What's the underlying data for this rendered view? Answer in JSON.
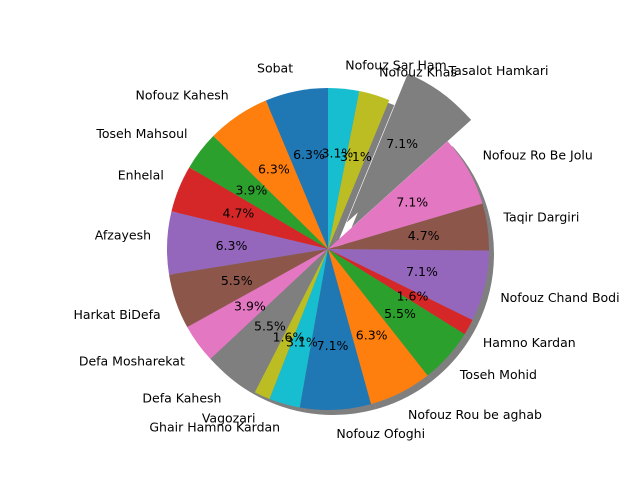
{
  "chart_data": {
    "type": "pie",
    "start_angle_deg": 90,
    "direction": "counterclockwise",
    "shadow": true,
    "slices": [
      {
        "label": "Sobat",
        "value": 6.3,
        "pct_text": "6.3%",
        "color": "#1f77b4"
      },
      {
        "label": "Nofouz Kahesh",
        "value": 6.3,
        "pct_text": "6.3%",
        "color": "#ff7f0e"
      },
      {
        "label": "Toseh Mahsoul",
        "value": 3.9,
        "pct_text": "3.9%",
        "color": "#2ca02c"
      },
      {
        "label": "Enhelal",
        "value": 4.7,
        "pct_text": "4.7%",
        "color": "#d62728"
      },
      {
        "label": "Afzayesh",
        "value": 6.3,
        "pct_text": "6.3%",
        "color": "#9467bd"
      },
      {
        "label": "Harkat BiDefa",
        "value": 5.5,
        "pct_text": "5.5%",
        "color": "#8c564b"
      },
      {
        "label": "Defa Mosharekat",
        "value": 3.9,
        "pct_text": "3.9%",
        "color": "#e377c2"
      },
      {
        "label": "Defa Kahesh",
        "value": 5.5,
        "pct_text": "5.5%",
        "color": "#7f7f7f"
      },
      {
        "label": "Vagozari",
        "value": 1.6,
        "pct_text": "1.6%",
        "color": "#bcbd22"
      },
      {
        "label": "Ghair Hamno Kardan",
        "value": 3.1,
        "pct_text": "3.1%",
        "color": "#17becf"
      },
      {
        "label": "Nofouz Ofoghi",
        "value": 7.1,
        "pct_text": "7.1%",
        "color": "#1f77b4"
      },
      {
        "label": "Nofouz Rou be aghab",
        "value": 6.3,
        "pct_text": "6.3%",
        "color": "#ff7f0e"
      },
      {
        "label": "Toseh Mohid",
        "value": 5.5,
        "pct_text": "5.5%",
        "color": "#2ca02c"
      },
      {
        "label": "Hamno Kardan",
        "value": 1.6,
        "pct_text": "1.6%",
        "color": "#d62728"
      },
      {
        "label": "Nofouz Chand Bodi",
        "value": 7.1,
        "pct_text": "7.1%",
        "color": "#9467bd"
      },
      {
        "label": "Taqir Dargiri",
        "value": 4.7,
        "pct_text": "4.7%",
        "color": "#8c564b"
      },
      {
        "label": "Nofouz Ro Be Jolu",
        "value": 7.1,
        "pct_text": "7.1%",
        "color": "#e377c2"
      },
      {
        "label": "Tasalot Hamkari",
        "value": 7.1,
        "pct_text": "7.1%",
        "color": "#7f7f7f",
        "exploded": true
      },
      {
        "label": "Nofouz Khas",
        "value": 3.1,
        "pct_text": "3.1%",
        "color": "#bcbd22"
      },
      {
        "label": "Nofouz Sar Ham",
        "value": 3.1,
        "pct_text": "3.1%",
        "color": "#17becf"
      }
    ]
  }
}
